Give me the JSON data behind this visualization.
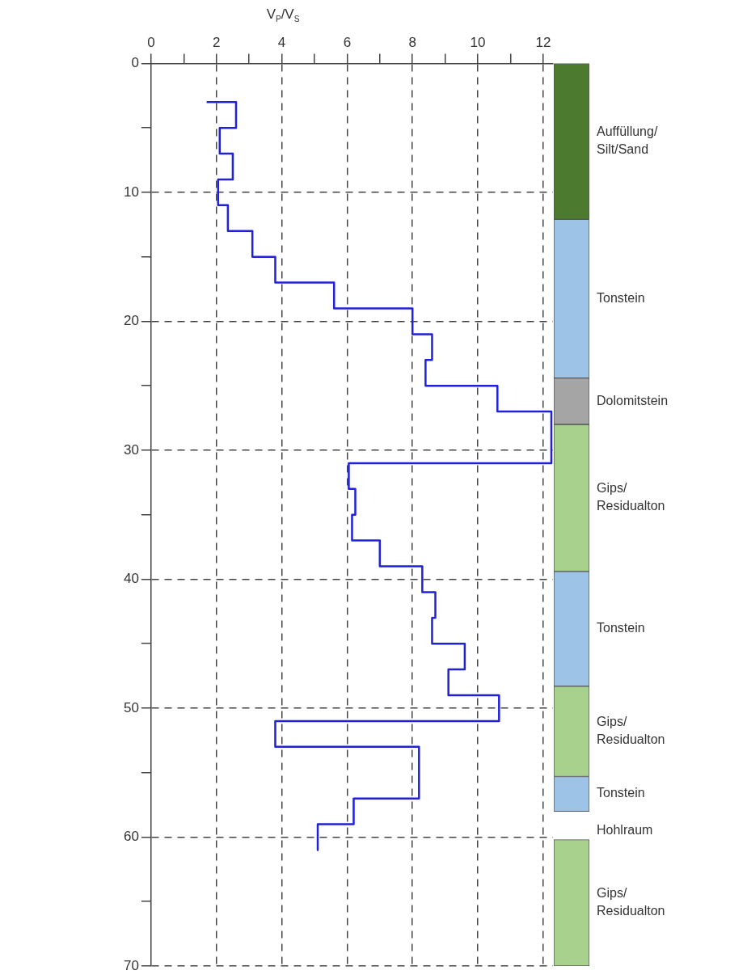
{
  "chart_data": [
    {
      "type": "line",
      "xlabel": "V$_{P}$/V$_{S}$",
      "xlim": [
        0,
        12.3
      ],
      "ylim": [
        70,
        0
      ],
      "xticks": [
        0,
        {
          "value": 1,
          "label": null
        },
        2,
        {
          "value": 3,
          "label": null
        },
        4,
        {
          "value": 5,
          "label": null
        },
        6,
        {
          "value": 7,
          "label": null
        },
        8,
        {
          "value": 9,
          "label": null
        },
        10,
        {
          "value": 11,
          "label": null
        },
        12
      ],
      "yticks": [
        0,
        {
          "value": 5,
          "label": null
        },
        10,
        {
          "value": 15,
          "label": null
        },
        20,
        {
          "value": 25,
          "label": null
        },
        30,
        {
          "value": 35,
          "label": null
        },
        40,
        {
          "value": 45,
          "label": null
        },
        50,
        {
          "value": 55,
          "label": null
        },
        60,
        {
          "value": 65,
          "label": null
        },
        70
      ],
      "grid": true,
      "line_style": "solid",
      "marker": "none",
      "series": [
        {
          "color": "#2121d8",
          "x": [
            1.7,
            2.6,
            2.6,
            2.1,
            2.1,
            2.5,
            2.5,
            2.05,
            2.05,
            2.35,
            2.35,
            3.1,
            3.1,
            3.8,
            3.8,
            5.6,
            5.6,
            8,
            8,
            8.6,
            8.6,
            8.4,
            8.4,
            10.6,
            10.6,
            12.25,
            12.25,
            6.05,
            6.05,
            6.25,
            6.25,
            6.15,
            6.15,
            7,
            7,
            8.3,
            8.3,
            8.7,
            8.7,
            8.6,
            8.6,
            9.6,
            9.6,
            9.1,
            9.1,
            10.65,
            10.65,
            3.8,
            3.8,
            8.2,
            8.2,
            6.2,
            6.2,
            5.1,
            5.1
          ],
          "values": [
            3,
            3,
            5,
            5,
            7,
            7,
            9,
            9,
            11,
            11,
            13,
            13,
            15,
            15,
            17,
            17,
            19,
            19,
            21,
            21,
            23,
            23,
            25,
            25,
            27,
            27,
            31,
            31,
            33,
            33,
            35,
            35,
            37,
            37,
            39,
            39,
            41,
            41,
            43,
            43,
            45,
            45,
            47,
            47,
            49,
            49,
            51,
            51,
            53,
            53,
            57,
            57,
            59,
            59,
            61
          ]
        }
      ]
    },
    {
      "type": "bar",
      "categories": [
        null
      ],
      "ylim": [
        70,
        0
      ],
      "tick_labels": false,
      "annotations": [
        "Hohlraum"
      ],
      "series": [
        {
          "name": "Auffüllung/\nSilt/Sand",
          "color": "#4c7a2f",
          "base": [
            0
          ],
          "values": [
            12.1
          ]
        },
        {
          "name": "Tonstein",
          "color": "#9dc3e6",
          "base": [
            12.1
          ],
          "values": [
            12.3
          ]
        },
        {
          "name": "Dolomitstein",
          "color": "#a5a5a5",
          "base": [
            24.4
          ],
          "values": [
            3.6
          ]
        },
        {
          "name": "Gips/\nResidualton",
          "color": "#a9d18e",
          "base": [
            28
          ],
          "values": [
            11.4
          ]
        },
        {
          "name": "Tonstein",
          "color": "#9dc3e6",
          "base": [
            39.4
          ],
          "values": [
            8.9
          ]
        },
        {
          "name": "Gips/\nResidualton",
          "color": "#a9d18e",
          "base": [
            48.3
          ],
          "values": [
            7
          ]
        },
        {
          "name": "Tonstein",
          "color": "#9dc3e6",
          "base": [
            55.3
          ],
          "values": [
            2.7
          ]
        },
        {
          "name": "Gips/\nResidualton",
          "color": "#a9d18e",
          "base": [
            60.2
          ],
          "values": [
            9.8
          ]
        }
      ]
    }
  ]
}
